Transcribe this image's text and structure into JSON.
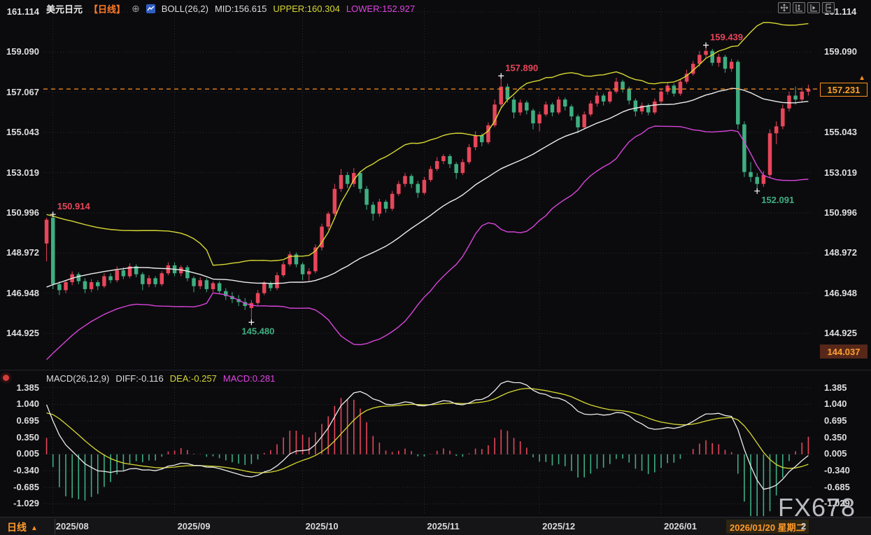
{
  "header": {
    "symbol": "美元日元",
    "period_tag": "【日线】",
    "plus_icon": "⊕",
    "boll": "BOLL(26,2)",
    "mid": "MID:156.615",
    "upper": "UPPER:160.304",
    "lower": "LOWER:152.927"
  },
  "macd_header": {
    "title": "MACD(26,12,9)",
    "diff": "DIFF:-0.116",
    "dea": "DEA:-0.257",
    "macd": "MACD:0.281"
  },
  "bottom_bar": {
    "period": "日线",
    "period_arrow": "▲",
    "highlight_date": "2026/01/20 星期二",
    "partial_next": "2"
  },
  "right_axis": {
    "current_price_label": "157.231",
    "low_marker_label": "144.037",
    "arrow": "▲"
  },
  "watermark": "FX678",
  "colors": {
    "background": "#0b0b0e",
    "grid": "#2c2c31",
    "up": "#e8465a",
    "down": "#3fae81",
    "boll_upper": "#d8d832",
    "boll_mid": "#ececec",
    "boll_lower": "#d944d9",
    "macd_diff": "#ececec",
    "macd_dea": "#d8d832",
    "accent_orange": "#ff8f1f",
    "axis_text": "#dfdfdf",
    "cross_marker": "#ffffff"
  },
  "chart_data": {
    "type": "candlestick",
    "symbol": "USD/JPY 美元日元",
    "interval": "daily 日线",
    "convention": "red = up, green = down",
    "indicators": {
      "boll": {
        "period": 26,
        "mult": 2,
        "mid": 156.615,
        "upper": 160.304,
        "lower": 152.927
      },
      "macd": {
        "fast": 26,
        "slow": 12,
        "signal": 9,
        "diff": -0.116,
        "dea": -0.257,
        "macd": 0.281
      }
    },
    "price_ticks": [
      {
        "label": "161.114",
        "value": 161.114
      },
      {
        "label": "159.090",
        "value": 159.09
      },
      {
        "label": "157.067",
        "value": 157.067
      },
      {
        "label": "155.043",
        "value": 155.043
      },
      {
        "label": "153.019",
        "value": 153.019
      },
      {
        "label": "150.996",
        "value": 150.996
      },
      {
        "label": "148.972",
        "value": 148.972
      },
      {
        "label": "146.948",
        "value": 146.948
      },
      {
        "label": "144.925",
        "value": 144.925
      }
    ],
    "macd_ticks": [
      {
        "label": "1.385",
        "value": 1.385
      },
      {
        "label": "1.040",
        "value": 1.04
      },
      {
        "label": "0.695",
        "value": 0.695
      },
      {
        "label": "0.350",
        "value": 0.35
      },
      {
        "label": "0.005",
        "value": 0.005
      },
      {
        "label": "-0.340",
        "value": -0.34
      },
      {
        "label": "-0.685",
        "value": -0.685
      },
      {
        "label": "-1.029",
        "value": -1.029
      }
    ],
    "current_price": 157.231,
    "session_low_marker": 144.037,
    "month_ticks": [
      {
        "label": "2025/08",
        "index": 1
      },
      {
        "label": "2025/09",
        "index": 20
      },
      {
        "label": "2025/10",
        "index": 40
      },
      {
        "label": "2025/11",
        "index": 59
      },
      {
        "label": "2025/12",
        "index": 77
      },
      {
        "label": "2026/01",
        "index": 96
      }
    ],
    "annotations": [
      {
        "text": "150.914",
        "index": 1,
        "price": 150.914,
        "kind": "high",
        "placement": "above-right"
      },
      {
        "text": "145.480",
        "index": 32,
        "price": 145.48,
        "kind": "low",
        "placement": "below-left"
      },
      {
        "text": "157.890",
        "index": 71,
        "price": 157.89,
        "kind": "high",
        "placement": "above-right"
      },
      {
        "text": "159.439",
        "index": 103,
        "price": 159.439,
        "kind": "high",
        "placement": "above-right"
      },
      {
        "text": "152.091",
        "index": 111,
        "price": 152.091,
        "kind": "low",
        "placement": "below-right"
      }
    ],
    "boll_seed": {
      "upper": 150.6,
      "mid": 147.0,
      "lower": 143.4
    },
    "macd_seed": {
      "diff": 1.03,
      "dea": 0.86
    },
    "candles": [
      [
        149.45,
        150.75,
        148.55,
        150.65
      ],
      [
        150.75,
        150.914,
        147.15,
        147.4
      ],
      [
        147.4,
        147.55,
        146.85,
        147.1
      ],
      [
        147.1,
        147.6,
        146.95,
        147.5
      ],
      [
        147.5,
        148.05,
        147.35,
        147.9
      ],
      [
        147.9,
        148.0,
        147.4,
        147.55
      ],
      [
        147.55,
        147.7,
        146.95,
        147.15
      ],
      [
        147.15,
        147.65,
        147.0,
        147.5
      ],
      [
        147.5,
        147.6,
        147.1,
        147.3
      ],
      [
        147.3,
        147.95,
        147.2,
        147.8
      ],
      [
        147.8,
        147.95,
        147.45,
        147.6
      ],
      [
        147.6,
        148.3,
        147.5,
        148.1
      ],
      [
        148.1,
        148.25,
        147.65,
        147.8
      ],
      [
        147.8,
        148.45,
        147.7,
        148.3
      ],
      [
        148.3,
        148.4,
        147.75,
        147.9
      ],
      [
        147.9,
        148.0,
        147.1,
        147.4
      ],
      [
        147.4,
        147.85,
        147.25,
        147.7
      ],
      [
        147.7,
        147.8,
        147.25,
        147.4
      ],
      [
        147.4,
        148.05,
        147.3,
        147.95
      ],
      [
        147.95,
        148.5,
        147.85,
        148.35
      ],
      [
        148.35,
        148.5,
        147.8,
        147.95
      ],
      [
        147.95,
        148.35,
        147.8,
        148.25
      ],
      [
        148.25,
        148.35,
        147.55,
        147.7
      ],
      [
        147.7,
        147.8,
        147.0,
        147.3
      ],
      [
        147.3,
        147.75,
        147.15,
        147.6
      ],
      [
        147.6,
        147.7,
        147.0,
        147.15
      ],
      [
        147.15,
        147.55,
        147.0,
        147.45
      ],
      [
        147.45,
        147.55,
        146.9,
        147.05
      ],
      [
        147.05,
        147.2,
        146.6,
        146.8
      ],
      [
        146.8,
        147.0,
        146.45,
        146.65
      ],
      [
        146.65,
        146.85,
        146.3,
        146.5
      ],
      [
        146.5,
        146.7,
        146.1,
        146.3
      ],
      [
        146.2,
        146.6,
        145.48,
        146.45
      ],
      [
        146.45,
        147.1,
        146.35,
        146.95
      ],
      [
        146.95,
        147.55,
        146.85,
        147.45
      ],
      [
        147.45,
        147.55,
        147.05,
        147.2
      ],
      [
        147.2,
        148.0,
        147.1,
        147.85
      ],
      [
        147.85,
        148.55,
        147.75,
        148.4
      ],
      [
        148.4,
        149.05,
        148.3,
        148.9
      ],
      [
        148.9,
        149.0,
        148.25,
        148.4
      ],
      [
        148.4,
        148.5,
        147.6,
        147.9
      ],
      [
        147.9,
        148.2,
        147.55,
        148.05
      ],
      [
        148.05,
        149.4,
        147.95,
        149.25
      ],
      [
        149.25,
        150.45,
        149.1,
        150.3
      ],
      [
        150.3,
        151.05,
        150.15,
        150.95
      ],
      [
        150.95,
        152.45,
        150.85,
        152.2
      ],
      [
        152.2,
        153.2,
        152.05,
        152.9
      ],
      [
        152.9,
        153.05,
        152.25,
        152.45
      ],
      [
        152.45,
        153.25,
        152.3,
        153.0
      ],
      [
        153.0,
        153.1,
        152.0,
        152.2
      ],
      [
        152.2,
        152.35,
        151.15,
        151.4
      ],
      [
        151.4,
        151.55,
        150.6,
        150.95
      ],
      [
        150.95,
        151.7,
        150.8,
        151.55
      ],
      [
        151.55,
        151.65,
        151.0,
        151.2
      ],
      [
        151.2,
        152.1,
        151.1,
        151.95
      ],
      [
        151.95,
        152.6,
        151.85,
        152.45
      ],
      [
        152.45,
        153.0,
        152.3,
        152.85
      ],
      [
        152.85,
        152.95,
        152.25,
        152.45
      ],
      [
        152.45,
        152.6,
        151.75,
        152.0
      ],
      [
        152.0,
        152.8,
        151.9,
        152.65
      ],
      [
        152.65,
        153.35,
        152.55,
        153.2
      ],
      [
        153.2,
        153.8,
        153.1,
        153.6
      ],
      [
        153.6,
        153.95,
        153.45,
        153.85
      ],
      [
        153.85,
        153.95,
        153.25,
        153.45
      ],
      [
        153.45,
        153.55,
        152.7,
        153.0
      ],
      [
        153.0,
        153.7,
        152.9,
        153.55
      ],
      [
        153.55,
        154.45,
        153.45,
        154.3
      ],
      [
        154.3,
        155.1,
        154.15,
        154.9
      ],
      [
        154.9,
        155.0,
        154.35,
        154.55
      ],
      [
        154.55,
        155.55,
        154.45,
        155.4
      ],
      [
        155.4,
        156.7,
        155.3,
        156.45
      ],
      [
        156.45,
        157.89,
        156.3,
        157.35
      ],
      [
        157.35,
        157.5,
        156.55,
        156.7
      ],
      [
        156.7,
        156.85,
        155.75,
        156.05
      ],
      [
        156.05,
        156.7,
        155.9,
        156.55
      ],
      [
        156.55,
        156.65,
        155.95,
        156.15
      ],
      [
        156.15,
        156.25,
        155.2,
        155.5
      ],
      [
        155.5,
        156.1,
        155.1,
        155.95
      ],
      [
        155.95,
        156.6,
        155.85,
        156.45
      ],
      [
        156.45,
        156.55,
        155.85,
        156.05
      ],
      [
        156.05,
        156.85,
        155.95,
        156.7
      ],
      [
        156.7,
        156.8,
        156.15,
        156.35
      ],
      [
        156.35,
        156.45,
        155.65,
        155.85
      ],
      [
        155.85,
        155.95,
        155.0,
        155.3
      ],
      [
        155.3,
        156.1,
        155.2,
        155.95
      ],
      [
        155.95,
        156.65,
        155.85,
        156.5
      ],
      [
        156.5,
        157.1,
        156.35,
        156.9
      ],
      [
        156.9,
        157.0,
        156.4,
        156.6
      ],
      [
        156.6,
        157.25,
        156.5,
        157.1
      ],
      [
        157.1,
        157.8,
        157.0,
        157.6
      ],
      [
        157.6,
        157.7,
        157.05,
        157.25
      ],
      [
        157.25,
        157.35,
        156.45,
        156.65
      ],
      [
        156.65,
        156.75,
        155.85,
        156.1
      ],
      [
        156.1,
        156.55,
        155.95,
        156.4
      ],
      [
        156.4,
        156.5,
        155.9,
        156.05
      ],
      [
        156.05,
        156.75,
        155.95,
        156.6
      ],
      [
        156.6,
        157.25,
        156.5,
        157.1
      ],
      [
        157.1,
        157.55,
        156.95,
        157.4
      ],
      [
        157.4,
        157.5,
        156.85,
        157.0
      ],
      [
        157.0,
        157.75,
        156.9,
        157.6
      ],
      [
        157.6,
        158.2,
        157.5,
        158.0
      ],
      [
        158.0,
        158.65,
        157.9,
        158.5
      ],
      [
        158.5,
        159.15,
        158.35,
        158.95
      ],
      [
        158.95,
        159.439,
        158.8,
        159.15
      ],
      [
        159.15,
        159.25,
        158.4,
        158.55
      ],
      [
        158.55,
        159.0,
        158.35,
        158.85
      ],
      [
        158.85,
        158.95,
        158.05,
        158.25
      ],
      [
        158.25,
        158.75,
        158.1,
        158.6
      ],
      [
        158.6,
        158.7,
        155.2,
        155.45
      ],
      [
        155.45,
        155.6,
        152.8,
        153.05
      ],
      [
        153.05,
        153.55,
        152.55,
        152.8
      ],
      [
        152.8,
        153.0,
        152.091,
        152.45
      ],
      [
        152.45,
        153.1,
        152.3,
        152.9
      ],
      [
        152.9,
        155.2,
        152.75,
        155.0
      ],
      [
        155.0,
        155.6,
        154.45,
        155.35
      ],
      [
        155.35,
        156.45,
        155.2,
        156.25
      ],
      [
        156.25,
        157.1,
        156.1,
        156.9
      ],
      [
        156.9,
        157.35,
        156.45,
        156.7
      ],
      [
        156.7,
        157.3,
        156.6,
        157.1
      ],
      [
        157.1,
        157.45,
        156.9,
        157.231
      ]
    ]
  }
}
